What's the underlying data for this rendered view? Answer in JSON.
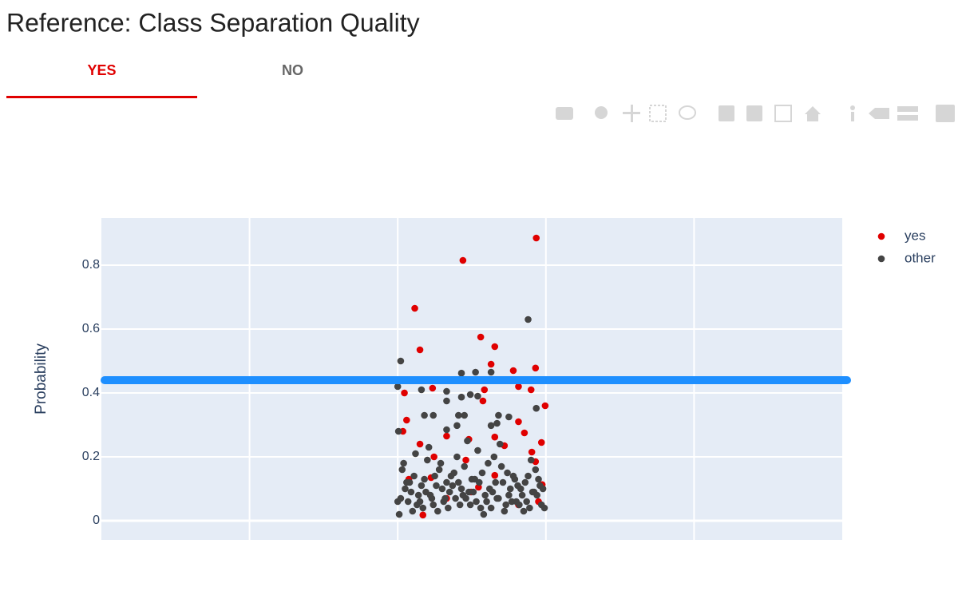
{
  "title": "Reference: Class Separation Quality",
  "tabs": [
    {
      "label": "YES",
      "active": true,
      "color": "#e00000"
    },
    {
      "label": "NO",
      "active": false,
      "color": "#666666"
    }
  ],
  "chart_data": {
    "type": "scatter",
    "yaxis_title": "Probability",
    "xlim": [
      -1,
      4
    ],
    "xticks": [
      0,
      1,
      2,
      3
    ],
    "show_xtick_labels": false,
    "ylim": [
      -0.06,
      0.9475
    ],
    "yticks": [
      0,
      0.2,
      0.4,
      0.6,
      0.8
    ],
    "grid": true,
    "legend": "right",
    "hline": {
      "value": 0.44,
      "color": "#1e8fff"
    },
    "series": [
      {
        "name": "yes",
        "color": "#e00000",
        "x": [
          1.935,
          1.44,
          1.115,
          1.15,
          1.56,
          1.655,
          1.63,
          1.78,
          1.93,
          1.045,
          1.235,
          1.585,
          1.815,
          1.9,
          1.575,
          1.995,
          1.06,
          1.815,
          1.035,
          1.855,
          1.48,
          1.33,
          1.15,
          1.655,
          1.72,
          1.97,
          1.245,
          1.905,
          1.46,
          1.93,
          1.075,
          1.225,
          1.655,
          1.545,
          1.975,
          1.17,
          1.33,
          1.815,
          1.495,
          1.95
        ],
        "values": [
          0.885,
          0.815,
          0.665,
          0.535,
          0.575,
          0.545,
          0.49,
          0.47,
          0.478,
          0.4,
          0.415,
          0.41,
          0.42,
          0.41,
          0.375,
          0.36,
          0.315,
          0.31,
          0.28,
          0.275,
          0.255,
          0.265,
          0.24,
          0.262,
          0.235,
          0.245,
          0.2,
          0.215,
          0.19,
          0.185,
          0.13,
          0.135,
          0.142,
          0.105,
          0.113,
          0.018,
          0.07,
          0.05,
          0.09,
          0.06
        ]
      },
      {
        "name": "other",
        "color": "#444444",
        "x": [
          1.88,
          1.02,
          1.0,
          1.16,
          1.43,
          1.525,
          1.63,
          1.33,
          1.43,
          1.49,
          1.54,
          1.33,
          1.935,
          1.18,
          1.24,
          1.41,
          1.45,
          1.68,
          1.75,
          1.67,
          1.63,
          1.4,
          1.005,
          1.33,
          1.02,
          1.08,
          1.13,
          1.19,
          1.25,
          1.31,
          1.37,
          1.44,
          1.5,
          1.56,
          1.62,
          1.68,
          1.74,
          1.8,
          1.86,
          1.92,
          1.97,
          1.04,
          1.1,
          1.16,
          1.22,
          1.28,
          1.34,
          1.4,
          1.46,
          1.52,
          1.58,
          1.64,
          1.7,
          1.76,
          1.82,
          1.88,
          1.94,
          1.99,
          1.01,
          1.07,
          1.12,
          1.18,
          1.24,
          1.3,
          1.36,
          1.42,
          1.48,
          1.54,
          1.6,
          1.66,
          1.72,
          1.78,
          1.84,
          1.9,
          1.96,
          1.03,
          1.09,
          1.15,
          1.21,
          1.27,
          1.33,
          1.39,
          1.45,
          1.51,
          1.57,
          1.63,
          1.69,
          1.75,
          1.81,
          1.87,
          1.93,
          1.98,
          1.06,
          1.14,
          1.2,
          1.26,
          1.32,
          1.38,
          1.43,
          1.49,
          1.55,
          1.61,
          1.67,
          1.73,
          1.79,
          1.85,
          1.91,
          1.95,
          1.05,
          1.11,
          1.17,
          1.23,
          1.29,
          1.35,
          1.41,
          1.47,
          1.53,
          1.59,
          1.65,
          1.71,
          1.77,
          1.83,
          1.89,
          1.0
        ],
        "values": [
          0.63,
          0.5,
          0.42,
          0.41,
          0.462,
          0.465,
          0.465,
          0.405,
          0.387,
          0.395,
          0.39,
          0.375,
          0.352,
          0.33,
          0.33,
          0.33,
          0.33,
          0.33,
          0.325,
          0.305,
          0.298,
          0.298,
          0.28,
          0.285,
          0.07,
          0.12,
          0.05,
          0.09,
          0.14,
          0.06,
          0.11,
          0.08,
          0.13,
          0.04,
          0.1,
          0.07,
          0.15,
          0.06,
          0.12,
          0.09,
          0.05,
          0.18,
          0.03,
          0.11,
          0.08,
          0.16,
          0.04,
          0.2,
          0.07,
          0.13,
          0.02,
          0.09,
          0.17,
          0.1,
          0.05,
          0.14,
          0.08,
          0.04,
          0.02,
          0.06,
          0.21,
          0.13,
          0.05,
          0.1,
          0.14,
          0.05,
          0.09,
          0.22,
          0.06,
          0.12,
          0.03,
          0.14,
          0.08,
          0.19,
          0.11,
          0.16,
          0.09,
          0.06,
          0.23,
          0.03,
          0.12,
          0.07,
          0.17,
          0.09,
          0.15,
          0.04,
          0.24,
          0.08,
          0.11,
          0.06,
          0.16,
          0.1,
          0.12,
          0.08,
          0.19,
          0.11,
          0.07,
          0.15,
          0.1,
          0.05,
          0.12,
          0.18,
          0.07,
          0.05,
          0.13,
          0.03,
          0.09,
          0.13,
          0.1,
          0.14,
          0.04,
          0.07,
          0.18,
          0.09,
          0.12,
          0.25,
          0.06,
          0.08,
          0.2,
          0.12,
          0.06,
          0.1,
          0.04,
          0.06
        ]
      }
    ]
  }
}
